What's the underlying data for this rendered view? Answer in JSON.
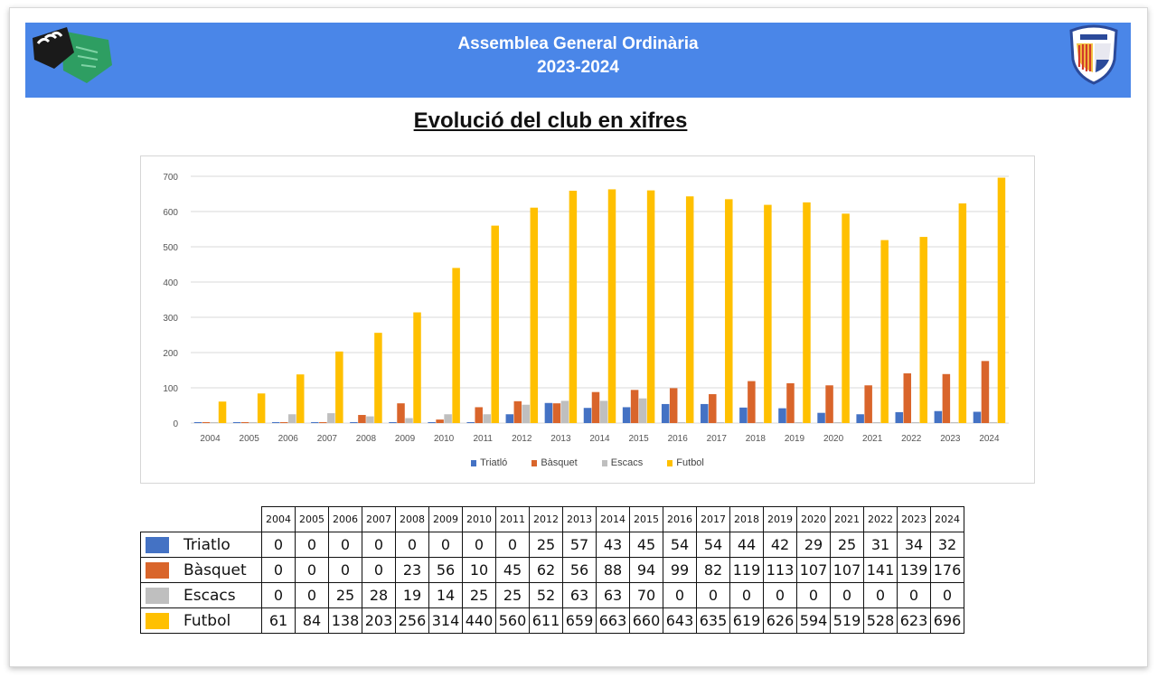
{
  "header": {
    "title_line1": "Assemblea General Ordinària",
    "title_line2": "2023-2024"
  },
  "slide_title": "Evolució del club en xifres",
  "colors": {
    "header_bg": "#4a86e8",
    "triatlo": "#4472c4",
    "basquet": "#d9652b",
    "escacs": "#bfbfbf",
    "futbol": "#ffc000"
  },
  "chart_data": {
    "type": "bar",
    "title": "",
    "xlabel": "",
    "ylabel": "",
    "ylim": [
      0,
      700
    ],
    "yticks": [
      "0",
      "100",
      "200",
      "300",
      "400",
      "500",
      "600",
      "700"
    ],
    "categories": [
      "2004",
      "2005",
      "2006",
      "2007",
      "2008",
      "2009",
      "2010",
      "2011",
      "2012",
      "2013",
      "2014",
      "2015",
      "2016",
      "2017",
      "2018",
      "2019",
      "2020",
      "2021",
      "2022",
      "2023",
      "2024"
    ],
    "legend_position": "bottom",
    "series": [
      {
        "name": "Triatló",
        "color": "#4472c4",
        "values": [
          0,
          0,
          0,
          0,
          0,
          0,
          0,
          0,
          25,
          57,
          43,
          45,
          54,
          54,
          44,
          42,
          29,
          25,
          31,
          34,
          32
        ]
      },
      {
        "name": "Bàsquet",
        "color": "#d9652b",
        "values": [
          0,
          0,
          0,
          0,
          23,
          56,
          10,
          45,
          62,
          56,
          88,
          94,
          99,
          82,
          119,
          113,
          107,
          107,
          141,
          139,
          176
        ]
      },
      {
        "name": "Escacs",
        "color": "#bfbfbf",
        "values": [
          0,
          0,
          25,
          28,
          19,
          14,
          25,
          25,
          52,
          63,
          63,
          70,
          0,
          0,
          0,
          0,
          0,
          0,
          0,
          0,
          0
        ]
      },
      {
        "name": "Futbol",
        "color": "#ffc000",
        "values": [
          61,
          84,
          138,
          203,
          256,
          314,
          440,
          560,
          611,
          659,
          663,
          660,
          643,
          635,
          619,
          626,
          594,
          519,
          528,
          623,
          696
        ]
      }
    ]
  },
  "table": {
    "years": [
      "2004",
      "2005",
      "2006",
      "2007",
      "2008",
      "2009",
      "2010",
      "2011",
      "2012",
      "2013",
      "2014",
      "2015",
      "2016",
      "2017",
      "2018",
      "2019",
      "2020",
      "2021",
      "2022",
      "2023",
      "2024"
    ],
    "rows": [
      {
        "label": "Triatlo",
        "color": "#4472c4",
        "values": [
          "0",
          "0",
          "0",
          "0",
          "0",
          "0",
          "0",
          "0",
          "25",
          "57",
          "43",
          "45",
          "54",
          "54",
          "44",
          "42",
          "29",
          "25",
          "31",
          "34",
          "32"
        ]
      },
      {
        "label": "Bàsquet",
        "color": "#d9652b",
        "values": [
          "0",
          "0",
          "0",
          "0",
          "23",
          "56",
          "10",
          "45",
          "62",
          "56",
          "88",
          "94",
          "99",
          "82",
          "119",
          "113",
          "107",
          "107",
          "141",
          "139",
          "176"
        ]
      },
      {
        "label": "Escacs",
        "color": "#bfbfbf",
        "values": [
          "0",
          "0",
          "25",
          "28",
          "19",
          "14",
          "25",
          "25",
          "52",
          "63",
          "63",
          "70",
          "0",
          "0",
          "0",
          "0",
          "0",
          "0",
          "0",
          "0",
          "0"
        ]
      },
      {
        "label": "Futbol",
        "color": "#ffc000",
        "values": [
          "61",
          "84",
          "138",
          "203",
          "256",
          "314",
          "440",
          "560",
          "611",
          "659",
          "663",
          "660",
          "643",
          "635",
          "619",
          "626",
          "594",
          "519",
          "528",
          "623",
          "696"
        ]
      }
    ]
  }
}
